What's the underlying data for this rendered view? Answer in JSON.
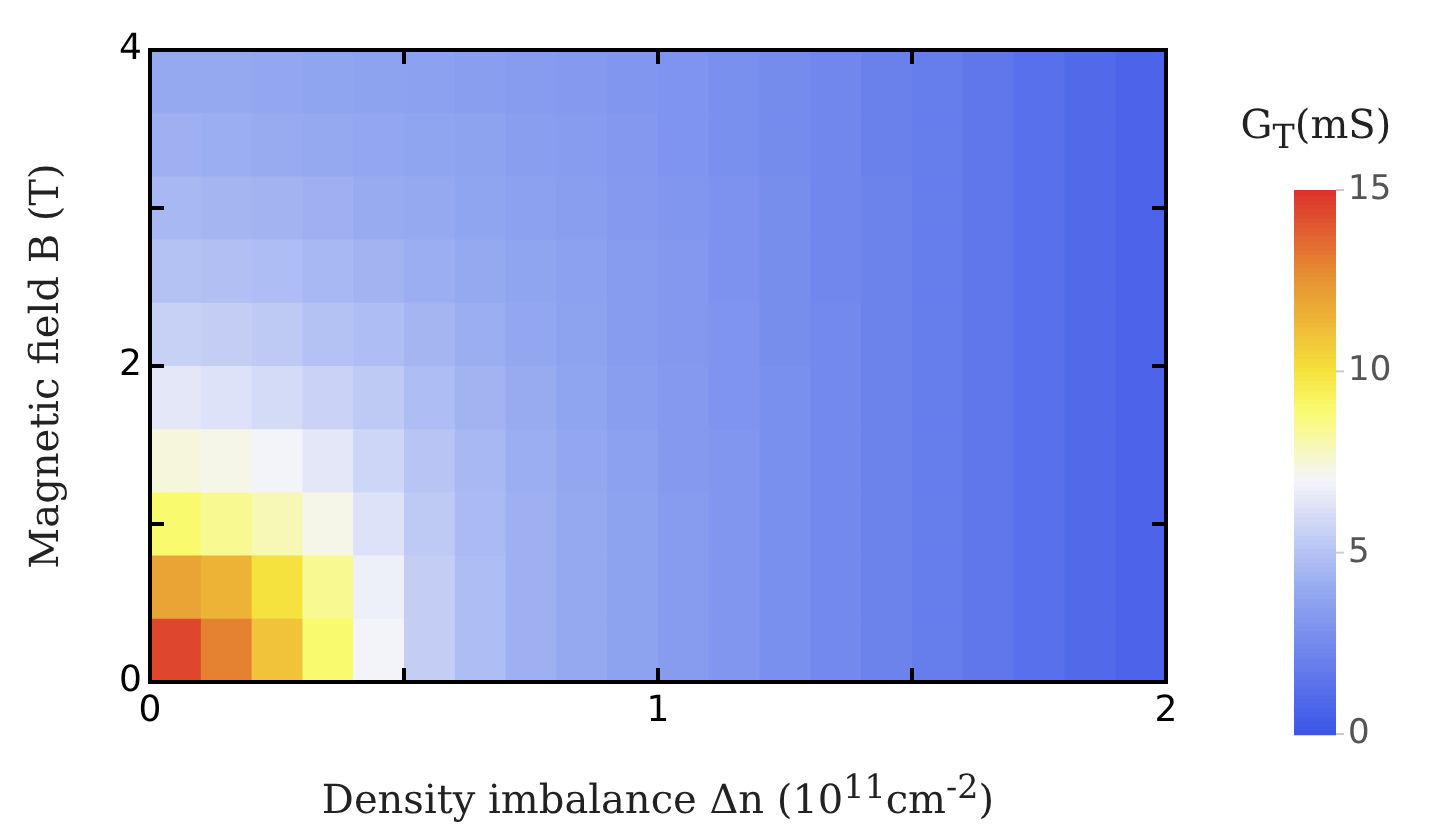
{
  "chart_data": {
    "type": "heatmap",
    "xlabel": "Density imbalance Δn (10$^{11}$cm$^{-2}$)",
    "ylabel": "Magnetic field B (T)",
    "clabel": "G$_{T}$(mS)",
    "x": [
      0.05,
      0.15,
      0.25,
      0.35,
      0.45,
      0.55,
      0.65,
      0.75,
      0.85,
      0.95,
      1.05,
      1.15,
      1.25,
      1.35,
      1.45,
      1.55,
      1.65,
      1.75,
      1.85,
      1.95
    ],
    "y": [
      3.8,
      3.4,
      3.0,
      2.6,
      2.2,
      1.8,
      1.4,
      1.0,
      0.6,
      0.2
    ],
    "xlim": [
      0,
      2
    ],
    "xticks": [
      0,
      {
        "value": 0.5,
        "label": null
      },
      1,
      {
        "value": 1.5,
        "label": null
      },
      2
    ],
    "ylim": [
      0,
      4
    ],
    "yticks": [
      0,
      {
        "value": 1,
        "label": null
      },
      2,
      {
        "value": 3,
        "label": null
      },
      4
    ],
    "clim": [
      0,
      15
    ],
    "cticks": [
      0,
      5,
      10,
      15
    ],
    "cells": [
      [
        4,
        4,
        3.9,
        3.8,
        3.7,
        3.6,
        3.5,
        3.4,
        3.3,
        3.1,
        3,
        2.8,
        2.6,
        2.4,
        2.1,
        1.9,
        1.6,
        1.3,
        1,
        0.7
      ],
      [
        4.3,
        4.2,
        4.1,
        4,
        3.9,
        3.8,
        3.7,
        3.5,
        3.4,
        3.2,
        3,
        2.8,
        2.6,
        2.4,
        2.1,
        1.9,
        1.6,
        1.3,
        1,
        0.7
      ],
      [
        4.6,
        4.5,
        4.4,
        4.3,
        4.1,
        4,
        3.8,
        3.6,
        3.5,
        3.3,
        3.1,
        2.9,
        2.7,
        2.4,
        2.2,
        1.9,
        1.6,
        1.3,
        1,
        0.7
      ],
      [
        5,
        4.9,
        4.8,
        4.6,
        4.4,
        4.2,
        4,
        3.8,
        3.6,
        3.4,
        3.2,
        2.9,
        2.7,
        2.4,
        2.2,
        1.9,
        1.6,
        1.3,
        1,
        0.7
      ],
      [
        5.6,
        5.5,
        5.3,
        5,
        4.8,
        4.5,
        4.2,
        3.9,
        3.7,
        3.4,
        3.2,
        3,
        2.7,
        2.5,
        2.2,
        1.9,
        1.6,
        1.3,
        1,
        0.7
      ],
      [
        6.5,
        6.3,
        6,
        5.7,
        5.3,
        4.8,
        4.4,
        4.1,
        3.8,
        3.5,
        3.3,
        3,
        2.8,
        2.5,
        2.2,
        1.9,
        1.6,
        1.3,
        1,
        0.7
      ],
      [
        7.5,
        7.3,
        7,
        6.5,
        5.8,
        5.1,
        4.6,
        4.2,
        3.9,
        3.6,
        3.3,
        3.1,
        2.8,
        2.5,
        2.2,
        1.9,
        1.6,
        1.3,
        1,
        0.7
      ],
      [
        9,
        8.5,
        8,
        7.3,
        6.3,
        5.3,
        4.7,
        4.3,
        4,
        3.7,
        3.4,
        3.1,
        2.8,
        2.5,
        2.2,
        1.9,
        1.6,
        1.3,
        1,
        0.7
      ],
      [
        12,
        11.5,
        10,
        8.5,
        6.8,
        5.5,
        4.8,
        4.3,
        4,
        3.7,
        3.4,
        3.1,
        2.8,
        2.5,
        2.2,
        1.9,
        1.6,
        1.3,
        1,
        0.7
      ],
      [
        14.5,
        13,
        11,
        9,
        7,
        5.5,
        4.8,
        4.3,
        4,
        3.7,
        3.4,
        3.1,
        2.8,
        2.5,
        2.2,
        1.9,
        1.6,
        1.3,
        1,
        0.7
      ]
    ]
  }
}
